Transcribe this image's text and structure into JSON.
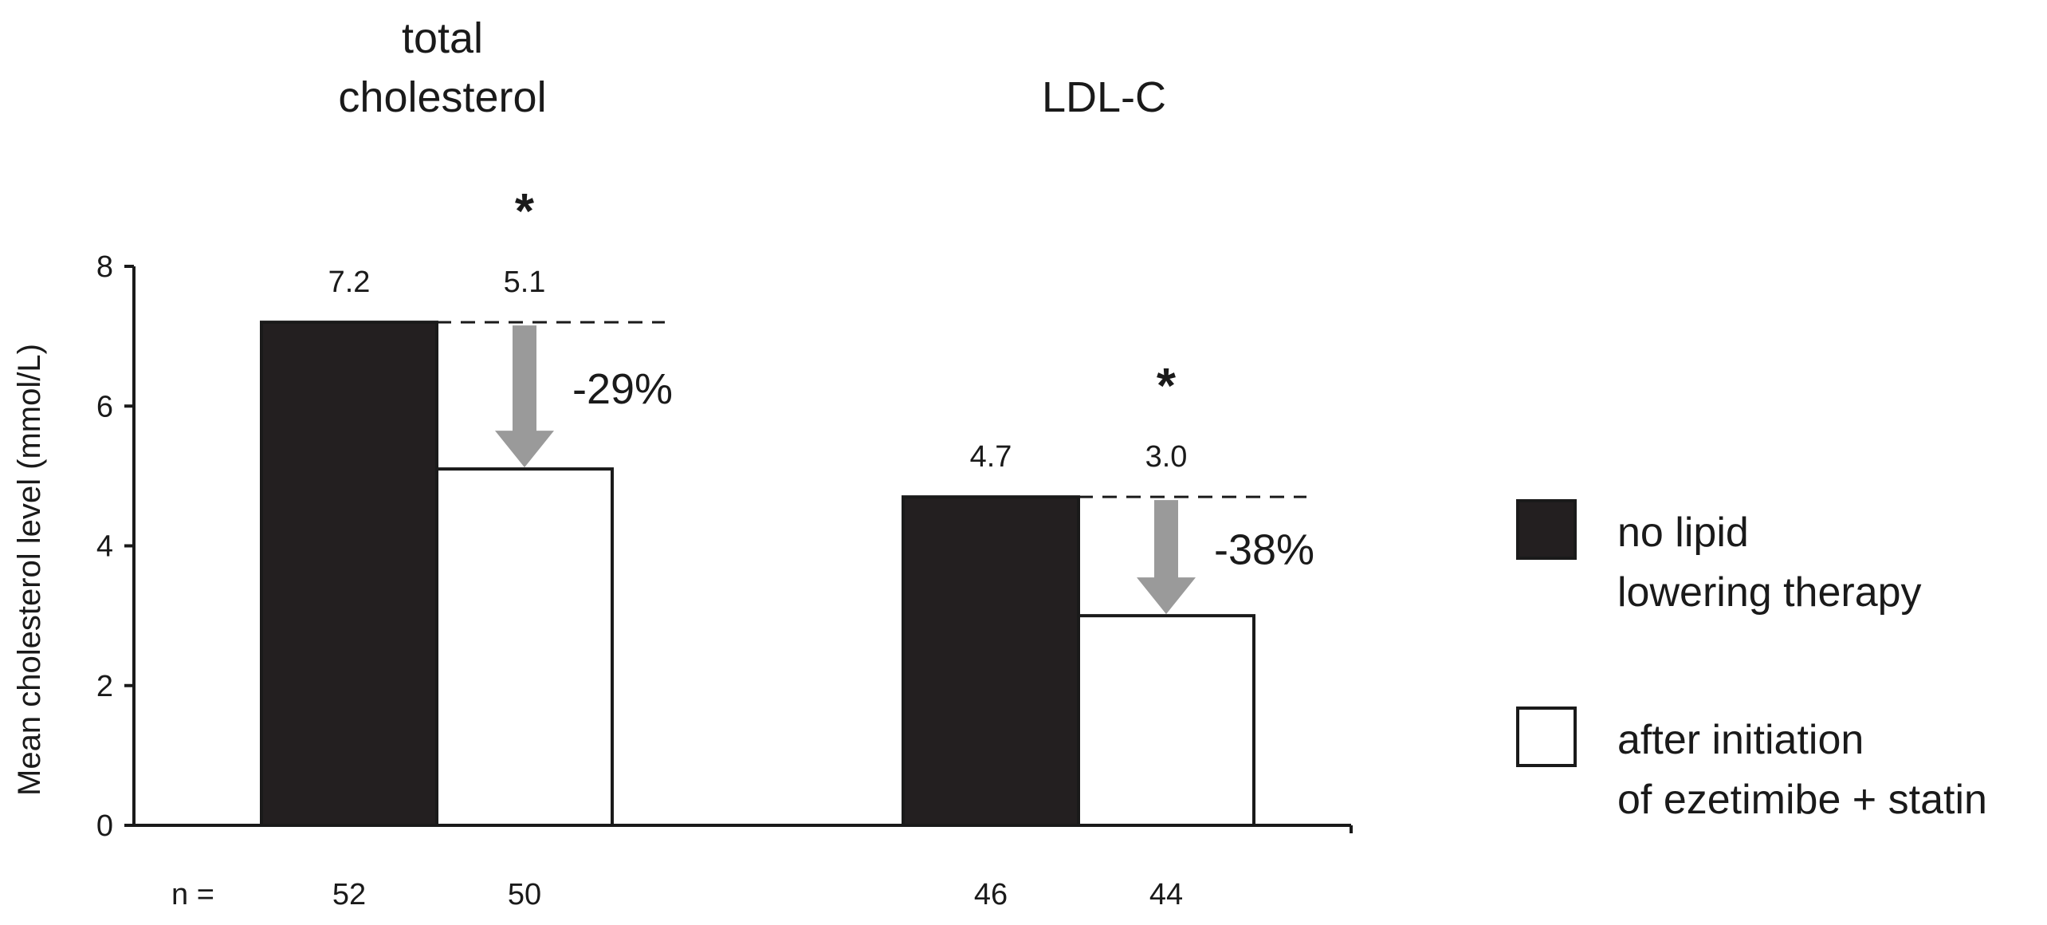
{
  "chart_data": {
    "type": "bar",
    "categories": [
      "total cholesterol",
      "LDL-C"
    ],
    "category_titles": [
      [
        "total",
        "cholesterol"
      ],
      [
        "LDL-C"
      ]
    ],
    "ylabel": "Mean cholesterol level (mmol/L)",
    "ylim": [
      0,
      8
    ],
    "yticks": [
      0,
      2,
      4,
      6,
      8
    ],
    "grid": false,
    "legend_position": "right",
    "series": [
      {
        "name": "no lipid lowering therapy",
        "legend_lines": [
          "no lipid",
          "lowering therapy"
        ],
        "values": [
          7.2,
          4.7
        ],
        "value_labels": [
          "7.2",
          "4.7"
        ],
        "n": [
          "52",
          "46"
        ],
        "color": "#231f20"
      },
      {
        "name": "after initiation of ezetimibe + statin",
        "legend_lines": [
          "after initiation",
          "of ezetimibe + statin"
        ],
        "values": [
          5.1,
          3.0
        ],
        "value_labels": [
          "5.1",
          "3.0"
        ],
        "n": [
          "50",
          "44"
        ],
        "color": "#ffffff"
      }
    ],
    "annotations": {
      "percent_change": [
        "-29%",
        "-38%"
      ],
      "significance": [
        "*",
        "*"
      ],
      "arrow_color": "#9a9a9a"
    },
    "n_label": "n ="
  }
}
